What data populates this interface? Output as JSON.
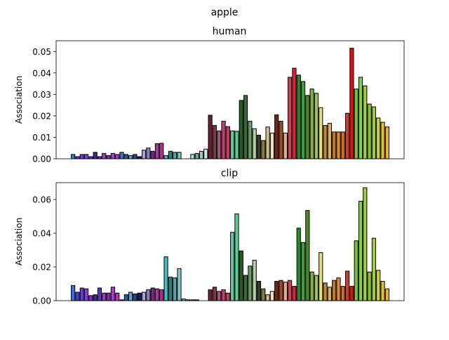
{
  "figure": {
    "title": "apple"
  },
  "chart_data": [
    {
      "type": "bar",
      "title": "human",
      "xlabel": "",
      "ylabel": "Association",
      "ylim": [
        0,
        0.055
      ],
      "yticks": [
        "0.00",
        "0.01",
        "0.02",
        "0.03",
        "0.04",
        "0.05"
      ],
      "ytick_values": [
        0,
        0.01,
        0.02,
        0.03,
        0.04,
        0.05
      ],
      "values": [
        0.002,
        0.001,
        0.002,
        0.002,
        0.001,
        0.003,
        0.001,
        0.0025,
        0.0015,
        0.0025,
        0.002,
        0.003,
        0.002,
        0.0015,
        0.002,
        0.001,
        0.004,
        0.005,
        0.0035,
        0.007,
        0.0072,
        0.0015,
        0.0035,
        0.003,
        0.003,
        0.0,
        0.0,
        0.002,
        0.0025,
        0.0035,
        0.0045,
        0.0203,
        0.0155,
        0.013,
        0.0175,
        0.015,
        0.013,
        0.0128,
        0.0272,
        0.0295,
        0.0175,
        0.014,
        0.011,
        0.0085,
        0.0148,
        0.012,
        0.0205,
        0.0175,
        0.012,
        0.038,
        0.0422,
        0.039,
        0.036,
        0.0295,
        0.0325,
        0.0305,
        0.0238,
        0.0155,
        0.0165,
        0.0125,
        0.0125,
        0.0125,
        0.0212,
        0.0515,
        0.0325,
        0.038,
        0.034,
        0.0255,
        0.0242,
        0.019,
        0.017,
        0.0148
      ],
      "colors": [
        "#3b6fe0",
        "#4444c8",
        "#6a3ad6",
        "#8a3ae0",
        "#7a2ec8",
        "#3a2a9a",
        "#5a3ab0",
        "#9a3ac8",
        "#8a2ab0",
        "#b03ad0",
        "#c030c0",
        "#3a7ac0",
        "#2a5aa0",
        "#6aa0d0",
        "#2a4a90",
        "#1a1a5a",
        "#b0a0d8",
        "#9080c0",
        "#7a2a8a",
        "#a03aa0",
        "#c02a8a",
        "#40c0c0",
        "#2a8080",
        "#60a0a0",
        "#80c8c8",
        "#60d0d0",
        "#b0e0e0",
        "#a0e8e0",
        "#80a0a0",
        "#a0c8c8",
        "#d0e8e8",
        "#6a2030",
        "#7a3a4a",
        "#a05a70",
        "#c04070",
        "#d03a60",
        "#6ac0a0",
        "#5ad090",
        "#2a5a2a",
        "#3a6a3a",
        "#6a9a6a",
        "#b0d0a0",
        "#3a3a2a",
        "#8a7a40",
        "#d0c090",
        "#f0e0c0",
        "#6a2a10",
        "#a04a2a",
        "#e0b090",
        "#d04050",
        "#e02040",
        "#2a8a2a",
        "#3aa03a",
        "#4a8a2a",
        "#80b040",
        "#a0c050",
        "#e0e080",
        "#c08a3a",
        "#e0b060",
        "#c07a2a",
        "#e08a3a",
        "#d0701a",
        "#d03a2a",
        "#e01010",
        "#7ac040",
        "#80d040",
        "#a0d040",
        "#90c030",
        "#a0d020",
        "#d0d040",
        "#e0c030",
        "#f0b030"
      ]
    },
    {
      "type": "bar",
      "title": "clip",
      "xlabel": "",
      "ylabel": "Association",
      "ylim": [
        0,
        0.07
      ],
      "yticks": [
        "0.00",
        "0.02",
        "0.04",
        "0.06"
      ],
      "ytick_values": [
        0,
        0.02,
        0.04,
        0.06
      ],
      "values": [
        0.009,
        0.005,
        0.0075,
        0.007,
        0.003,
        0.0035,
        0.0075,
        0.0045,
        0.0045,
        0.008,
        0.0045,
        0.0005,
        0.0035,
        0.005,
        0.004,
        0.0045,
        0.005,
        0.0065,
        0.0075,
        0.007,
        0.0065,
        0.026,
        0.014,
        0.0135,
        0.019,
        0.001,
        0.0005,
        0.0005,
        0.0005,
        0.0,
        0.0,
        0.0065,
        0.008,
        0.0055,
        0.0065,
        0.0045,
        0.0405,
        0.0515,
        0.0295,
        0.015,
        0.0205,
        0.024,
        0.0115,
        0.007,
        0.0035,
        0.0055,
        0.0115,
        0.012,
        0.011,
        0.012,
        0.0085,
        0.043,
        0.0345,
        0.0535,
        0.017,
        0.015,
        0.0285,
        0.0105,
        0.008,
        0.012,
        0.0135,
        0.0085,
        0.0175,
        0.0085,
        0.0355,
        0.059,
        0.067,
        0.017,
        0.037,
        0.018,
        0.0115,
        0.007
      ],
      "colors": [
        "#3b6fe0",
        "#4444c8",
        "#6a3ad6",
        "#8a3ae0",
        "#7a2ec8",
        "#3a2a9a",
        "#5a3ab0",
        "#9a3ac8",
        "#8a2ab0",
        "#b03ad0",
        "#c030c0",
        "#3a7ac0",
        "#2a5aa0",
        "#6aa0d0",
        "#2a4a90",
        "#1a1a5a",
        "#b0a0d8",
        "#9080c0",
        "#7a2a8a",
        "#a03aa0",
        "#c02a8a",
        "#40c0c0",
        "#2a8080",
        "#60a0a0",
        "#80c8c8",
        "#60d0d0",
        "#b0e0e0",
        "#a0e8e0",
        "#80a0a0",
        "#a0c8c8",
        "#d0e8e8",
        "#6a2030",
        "#7a3a4a",
        "#a05a70",
        "#c04070",
        "#d03a60",
        "#6ac0a0",
        "#5ad090",
        "#2a5a2a",
        "#3a6a3a",
        "#6a9a6a",
        "#b0d0a0",
        "#3a3a2a",
        "#8a7a40",
        "#d0c090",
        "#f0e0c0",
        "#6a2a10",
        "#a04a2a",
        "#e0b090",
        "#d04050",
        "#e02040",
        "#2a8a2a",
        "#3aa03a",
        "#4a8a2a",
        "#80b040",
        "#a0c050",
        "#e0e080",
        "#c08a3a",
        "#e0b060",
        "#c07a2a",
        "#e08a3a",
        "#d0701a",
        "#d03a2a",
        "#e01010",
        "#7ac040",
        "#80d040",
        "#a0d040",
        "#90c030",
        "#a0d020",
        "#d0d040",
        "#e0c030",
        "#f0b030"
      ]
    }
  ]
}
